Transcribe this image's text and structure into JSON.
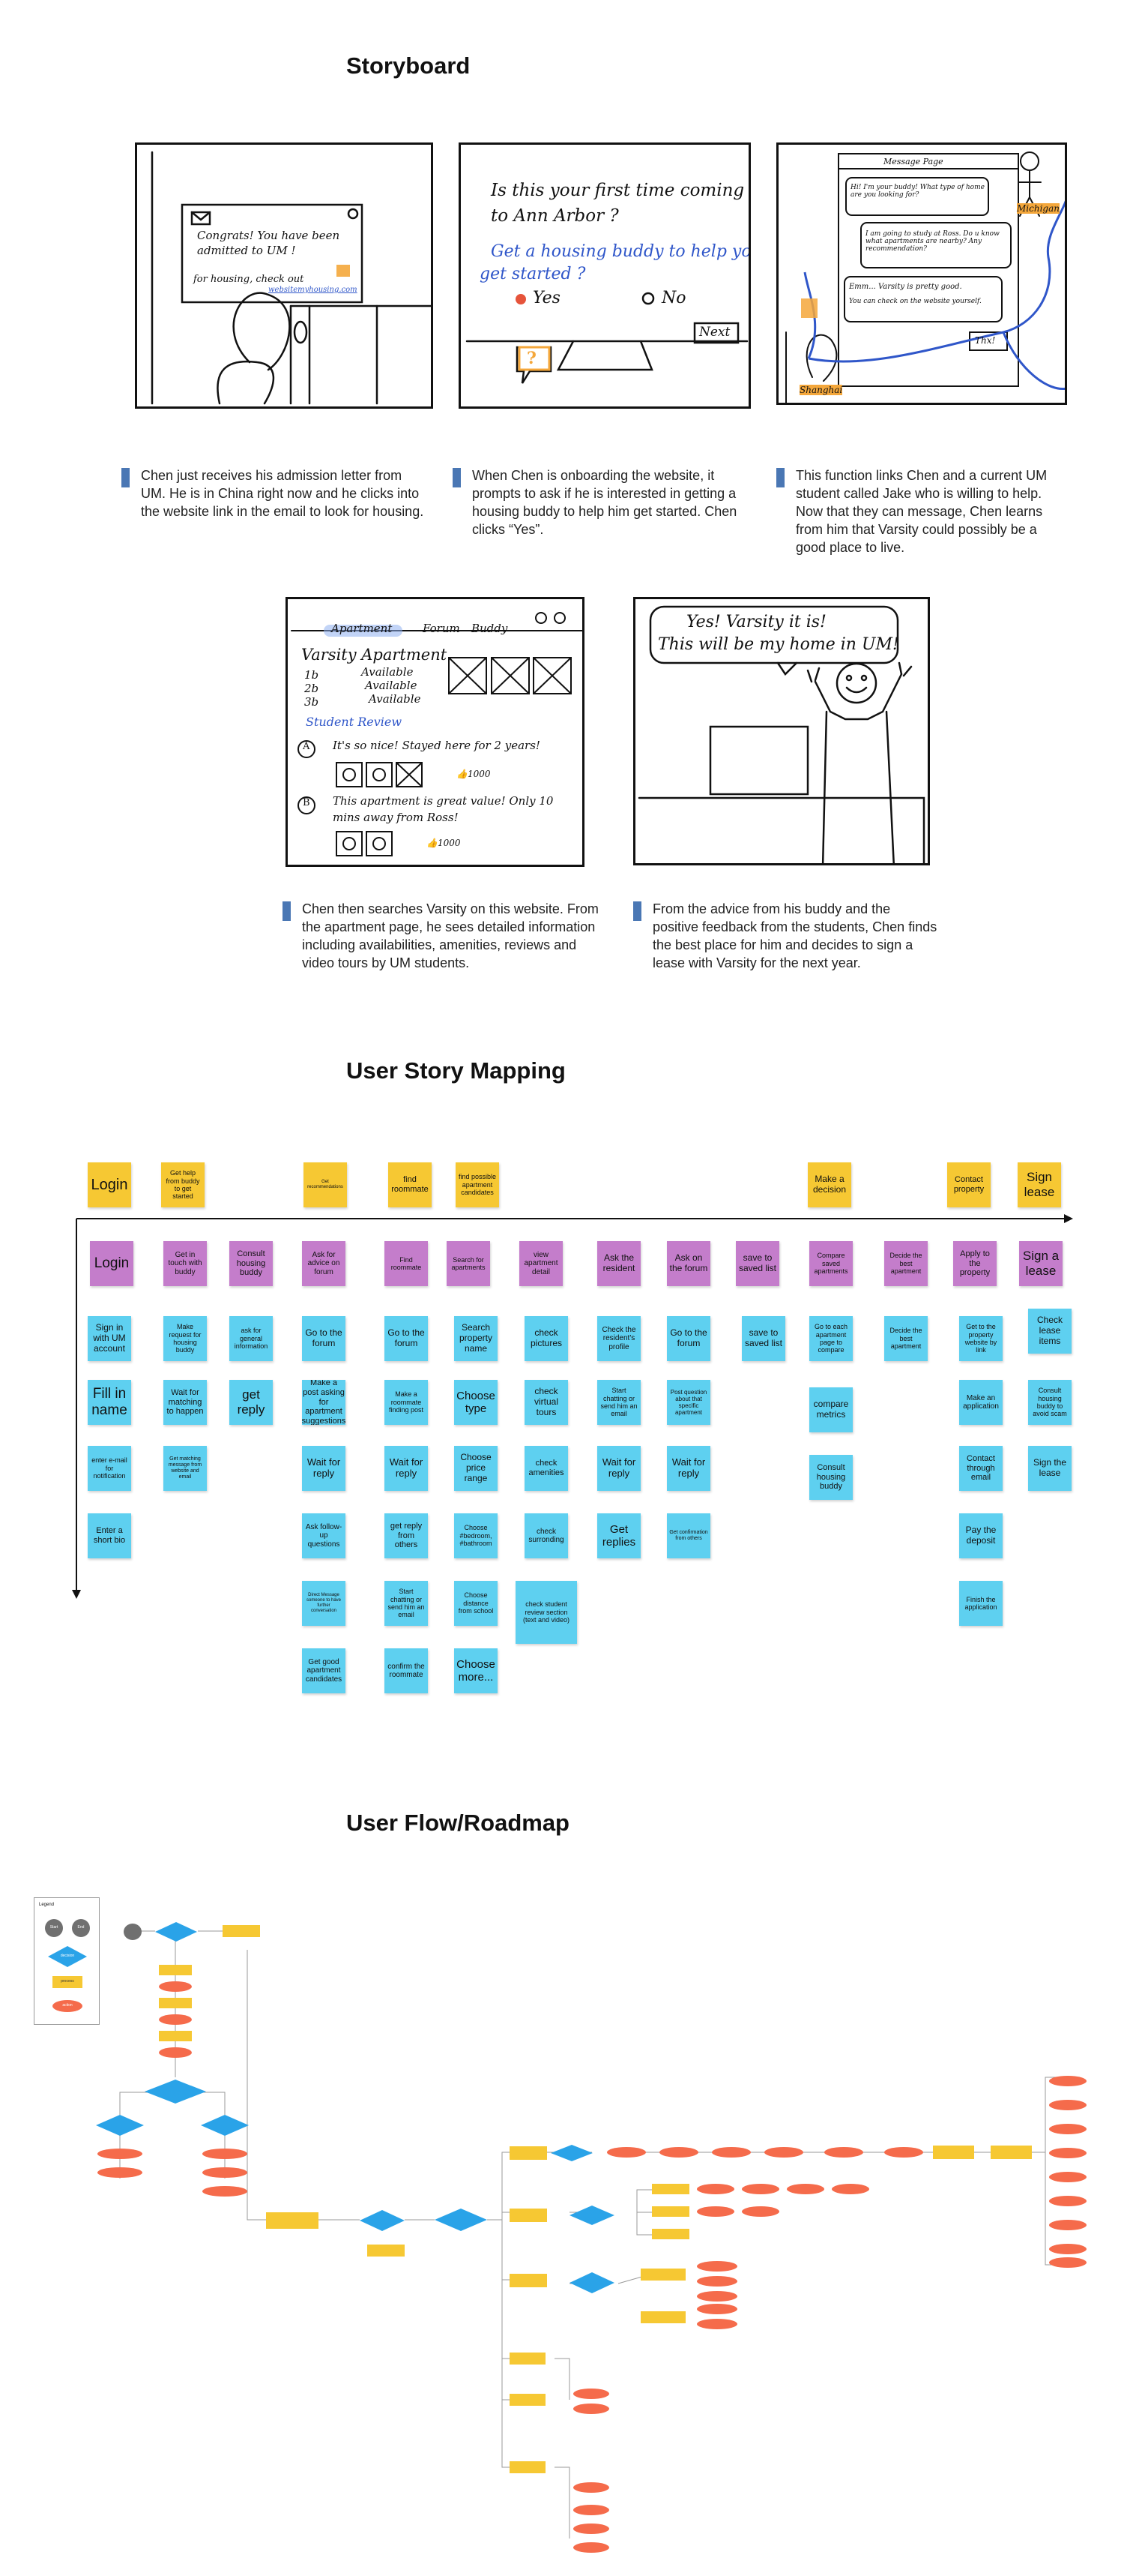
{
  "sections": {
    "storyboard": "Storyboard",
    "mapping": "User Story Mapping",
    "flow": "User Flow/Roadmap"
  },
  "storyboard": {
    "panel1": {
      "letter_line1": "Congrats! You have been",
      "letter_line2": "admitted to UM !",
      "letter_line3": "for housing, check out",
      "link": "websitemyhousing.com"
    },
    "panel2": {
      "q1": "Is this your first time coming",
      "q2": "to Ann Arbor ?",
      "q3": "Get a housing buddy to help you",
      "q4": "get started ?",
      "yes": "Yes",
      "no": "No",
      "next": "Next"
    },
    "panel3": {
      "header": "Message  Page",
      "m1": "Hi! I'm your buddy! What type of home are you looking for?",
      "m2": "I am going to study at Ross. Do u know what apartments are nearby? Any recommendation?",
      "m3a": "Emm... Varsity is pretty good.",
      "m3b": "You can check on the website yourself.",
      "thx": "Thx!",
      "michigan": "Michigan",
      "shanghai": "Shanghai"
    },
    "panel4": {
      "tab1": "Apartment",
      "tab2": "Forum",
      "tab3": "Buddy",
      "title": "Varsity Apartment",
      "u1": "1b",
      "u2": "2b",
      "u3": "3b",
      "a1": "Available",
      "a2": "Available",
      "a3": "Available",
      "review": "Student  Review",
      "ra": "A",
      "r1": "It's so nice! Stayed here for 2 years!",
      "rb": "B",
      "r2a": "This apartment is great value! Only 10",
      "r2b": "mins away from Ross!",
      "likes1": "1000",
      "likes2": "1000"
    },
    "panel5": {
      "s1": "Yes! Varsity it is!",
      "s2": "This will be my home in UM!"
    },
    "captions": [
      "Chen just receives his admission letter from UM. He is in China right now and he clicks into the website link in the email to look for housing.",
      "When Chen is onboarding the website, it prompts to ask if he is interested in getting a housing buddy to help him get started. Chen clicks “Yes”.",
      "This function links Chen and a current UM student called Jake who is willing to help. Now that they can message, Chen learns from him that Varsity could possibly be a good place to live.",
      "Chen then searches Varsity on this website. From the apartment page, he sees detailed information including availabilities, amenities, reviews and video tours by UM students.",
      "From the advice from his buddy and the positive feedback from the students, Chen finds the best place for him and decides to sign a lease with Varsity for the next year."
    ]
  },
  "mapping": {
    "yellow": [
      "Login",
      "Get help from buddy to get started",
      "Get recommendations",
      "find roommate",
      "find possible apartment candidates",
      "Make a decision",
      "Contact property",
      "Sign lease"
    ],
    "purple": [
      "Login",
      "Get in touch with buddy",
      "Consult housing buddy",
      "Ask for advice on forum",
      "Find roommate",
      "Search for apartments",
      "view apartment detail",
      "Ask the resident",
      "Ask on the forum",
      "save to saved list",
      "Compare saved apartments",
      "Decide the best apartment",
      "Apply to the property",
      "Sign a lease"
    ],
    "blue": [
      "Sign in with UM account",
      "Fill in name",
      "enter e-mail for notification",
      "Enter a short bio",
      "Make request for housing buddy",
      "Wait for matching to happen",
      "Get matching message from website and email",
      "ask for general information",
      "get reply",
      "Go to the forum",
      "Make a post asking for apartment suggestions",
      "Wait for reply",
      "Ask follow-up questions",
      "Direct Message someone to have further conversation",
      "Get good apartment candidates",
      "Go to the forum",
      "Make a roommate finding post",
      "Wait for reply",
      "get reply from others",
      "Start chatting or send him an email",
      "confirm the roommate",
      "Search property name",
      "Choose type",
      "Choose price range",
      "Choose #bedroom, #bathroom",
      "Choose distance from school",
      "Choose more...",
      "check pictures",
      "check virtual tours",
      "check amenities",
      "check surronding",
      "check student review section (text and video)",
      "Check the resident's profile",
      "Start chatting or send him an email",
      "Wait for reply",
      "Get replies",
      "Go to the forum",
      "Post question about that specific apartment",
      "Wait for reply",
      "Get confirmation from others",
      "save to saved list",
      "Go to each apartment page to compare",
      "compare metrics",
      "Consult housing buddy",
      "Decide the best apartment",
      "Get to the property website by link",
      "Make an application",
      "Contact through email",
      "Pay the deposit",
      "Finish the application",
      "Check lease items",
      "Consult housing buddy to avoid scam",
      "Sign the lease"
    ]
  },
  "flow": {
    "legend": "Legend",
    "start": "Start",
    "end": "End",
    "process": "process",
    "decision": "decision",
    "action": "action"
  },
  "colors": {
    "yellow": "#f6c833",
    "purple": "#c47dcb",
    "blue": "#5ed0f0",
    "orange": "#f56b4b",
    "diamond": "#2aa3e8",
    "caption_bar": "#4a77b4"
  }
}
